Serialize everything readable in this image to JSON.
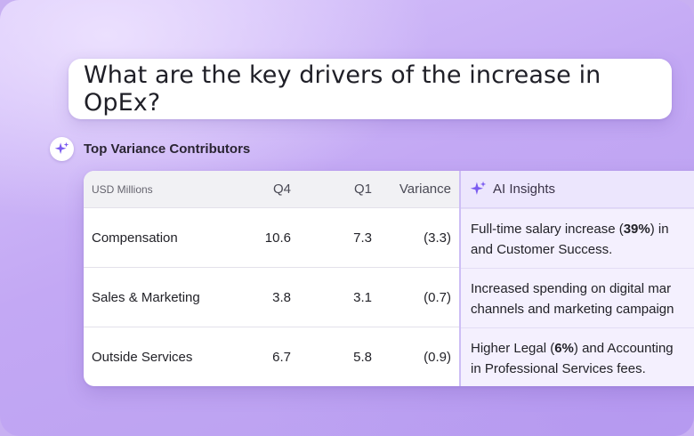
{
  "prompt": {
    "question": "What are the key drivers of the increase in OpEx?"
  },
  "section": {
    "title": "Top Variance Contributors",
    "icon": "sparkle-icon"
  },
  "table": {
    "headers": {
      "label": "USD Millions",
      "q4": "Q4",
      "q1": "Q1",
      "variance": "Variance",
      "insights": "AI Insights"
    },
    "rows": [
      {
        "label": "Compensation",
        "q4": "10.6",
        "q1": "7.3",
        "variance": "(3.3)",
        "ins_l1_a": "Full-time salary increase (",
        "ins_l1_b": "39%",
        "ins_l1_c": ") in",
        "ins_l2": "and Customer Success."
      },
      {
        "label": "Sales & Marketing",
        "q4": "3.8",
        "q1": "3.1",
        "variance": "(0.7)",
        "ins_l1_a": "Increased spending on digital mar",
        "ins_l1_b": "",
        "ins_l1_c": "",
        "ins_l2": "channels and marketing campaign"
      },
      {
        "label": "Outside Services",
        "q4": "6.7",
        "q1": "5.8",
        "variance": "(0.9)",
        "ins_l1_a": "Higher Legal (",
        "ins_l1_b": "6%",
        "ins_l1_c": ") and Accounting",
        "ins_l2": "in Professional Services fees."
      }
    ]
  },
  "colors": {
    "accent": "#7b5cf0",
    "background": "#c8b0f2",
    "insight_bg": "#f4f0fe"
  }
}
